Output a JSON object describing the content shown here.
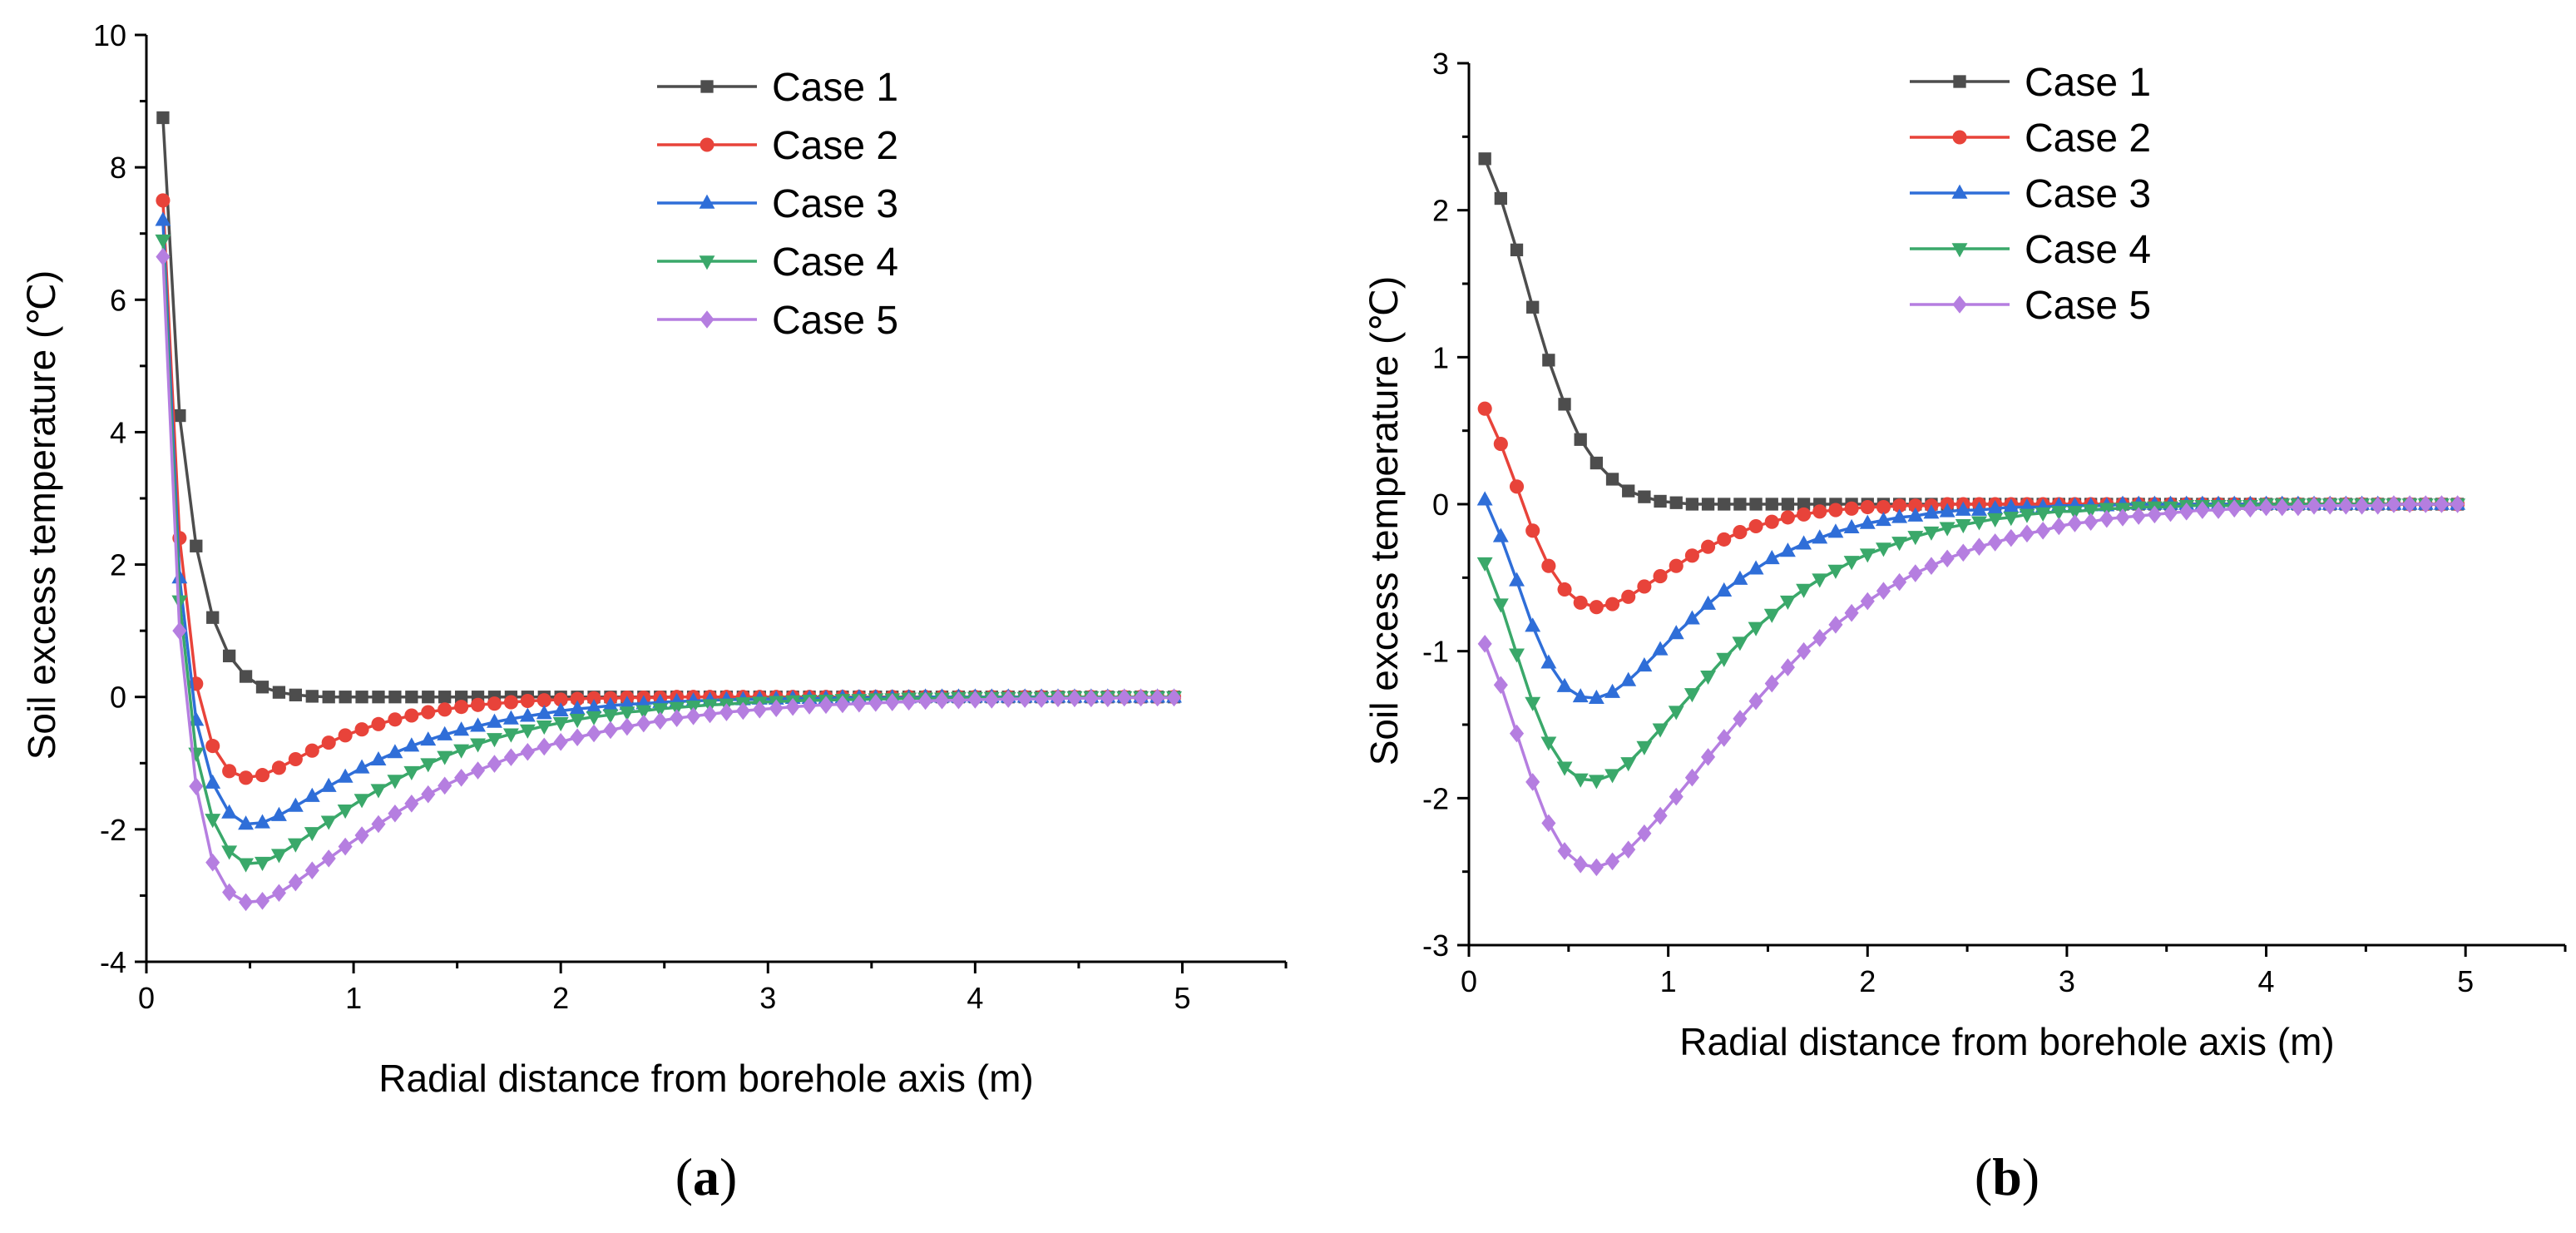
{
  "chart_data": [
    {
      "type": "line",
      "panel_label": "(a)",
      "panel_letter": "a",
      "xlabel": "Radial distance from borehole axis (m)",
      "ylabel": "Soil excess temperature (℃)",
      "xlim": [
        0,
        5.5
      ],
      "ylim": [
        -4,
        10
      ],
      "xticks": [
        0,
        1,
        2,
        3,
        4,
        5
      ],
      "yticks": [
        -4,
        -2,
        0,
        2,
        4,
        6,
        8,
        10
      ],
      "x": [
        0.08,
        0.16,
        0.24,
        0.32,
        0.4,
        0.48,
        0.56,
        0.64,
        0.72,
        0.8,
        0.88,
        0.96,
        1.04,
        1.12,
        1.2,
        1.28,
        1.36,
        1.44,
        1.52,
        1.6,
        1.68,
        1.76,
        1.84,
        1.92,
        2.0,
        2.08,
        2.16,
        2.24,
        2.32,
        2.4,
        2.48,
        2.56,
        2.64,
        2.72,
        2.8,
        2.88,
        2.96,
        3.04,
        3.12,
        3.2,
        3.28,
        3.36,
        3.44,
        3.52,
        3.6,
        3.68,
        3.76,
        3.84,
        3.92,
        4.0,
        4.08,
        4.16,
        4.24,
        4.32,
        4.4,
        4.48,
        4.56,
        4.64,
        4.72,
        4.8,
        4.88,
        4.96
      ],
      "series": [
        {
          "name": "Case 1",
          "color": "#4d4d4d",
          "marker": "square",
          "values": [
            8.75,
            4.25,
            2.28,
            1.2,
            0.62,
            0.31,
            0.15,
            0.07,
            0.03,
            0.01,
            0,
            0,
            0,
            0,
            0,
            0,
            0,
            0,
            0,
            0,
            0,
            0,
            0,
            0,
            0,
            0,
            0,
            0,
            0,
            0,
            0,
            0,
            0,
            0,
            0,
            0,
            0,
            0,
            0,
            0,
            0,
            0,
            0,
            0,
            0,
            0,
            0,
            0,
            0,
            0,
            0,
            0,
            0,
            0,
            0,
            0,
            0,
            0,
            0,
            0,
            0,
            0
          ]
        },
        {
          "name": "Case 2",
          "color": "#e8433a",
          "marker": "circle",
          "values": [
            7.5,
            2.4,
            0.2,
            -0.74,
            -1.12,
            -1.22,
            -1.18,
            -1.07,
            -0.94,
            -0.81,
            -0.69,
            -0.58,
            -0.49,
            -0.41,
            -0.34,
            -0.28,
            -0.23,
            -0.19,
            -0.15,
            -0.12,
            -0.1,
            -0.08,
            -0.06,
            -0.05,
            -0.04,
            -0.03,
            -0.02,
            -0.02,
            -0.01,
            -0.01,
            -0.01,
            0,
            0,
            0,
            0,
            0,
            0,
            0,
            0,
            0,
            0,
            0,
            0,
            0,
            0,
            0,
            0,
            0,
            0,
            0,
            0,
            0,
            0,
            0,
            0,
            0,
            0,
            0,
            0,
            0,
            0,
            0
          ]
        },
        {
          "name": "Case 3",
          "color": "#2f6ed8",
          "marker": "triangle-up",
          "values": [
            7.2,
            1.8,
            -0.35,
            -1.3,
            -1.75,
            -1.92,
            -1.9,
            -1.79,
            -1.65,
            -1.5,
            -1.35,
            -1.21,
            -1.07,
            -0.95,
            -0.84,
            -0.74,
            -0.65,
            -0.57,
            -0.5,
            -0.44,
            -0.38,
            -0.33,
            -0.29,
            -0.25,
            -0.21,
            -0.18,
            -0.16,
            -0.13,
            -0.11,
            -0.1,
            -0.08,
            -0.07,
            -0.06,
            -0.05,
            -0.04,
            -0.04,
            -0.03,
            -0.03,
            -0.02,
            -0.02,
            -0.02,
            -0.01,
            -0.01,
            -0.01,
            -0.01,
            -0.01,
            0,
            0,
            0,
            0,
            0,
            0,
            0,
            0,
            0,
            0,
            0,
            0,
            0,
            0,
            0,
            0
          ]
        },
        {
          "name": "Case 4",
          "color": "#3aa86a",
          "marker": "triangle-down",
          "values": [
            6.9,
            1.45,
            -0.85,
            -1.85,
            -2.33,
            -2.52,
            -2.5,
            -2.38,
            -2.22,
            -2.05,
            -1.88,
            -1.71,
            -1.55,
            -1.4,
            -1.26,
            -1.13,
            -1.01,
            -0.9,
            -0.8,
            -0.71,
            -0.63,
            -0.56,
            -0.5,
            -0.44,
            -0.39,
            -0.34,
            -0.3,
            -0.27,
            -0.23,
            -0.21,
            -0.18,
            -0.16,
            -0.14,
            -0.12,
            -0.11,
            -0.09,
            -0.08,
            -0.07,
            -0.06,
            -0.05,
            -0.05,
            -0.04,
            -0.04,
            -0.03,
            -0.03,
            -0.02,
            -0.02,
            -0.02,
            -0.01,
            -0.01,
            -0.01,
            -0.01,
            -0.01,
            -0.01,
            0,
            0,
            0,
            0,
            0,
            0,
            0,
            0
          ]
        },
        {
          "name": "Case 5",
          "color": "#b57ee0",
          "marker": "diamond",
          "values": [
            6.65,
            1.0,
            -1.35,
            -2.5,
            -2.95,
            -3.1,
            -3.08,
            -2.96,
            -2.8,
            -2.62,
            -2.44,
            -2.26,
            -2.09,
            -1.92,
            -1.76,
            -1.61,
            -1.47,
            -1.34,
            -1.22,
            -1.11,
            -1.01,
            -0.91,
            -0.83,
            -0.75,
            -0.68,
            -0.61,
            -0.55,
            -0.5,
            -0.45,
            -0.4,
            -0.36,
            -0.32,
            -0.29,
            -0.26,
            -0.23,
            -0.21,
            -0.19,
            -0.17,
            -0.15,
            -0.13,
            -0.12,
            -0.11,
            -0.1,
            -0.09,
            -0.08,
            -0.07,
            -0.06,
            -0.05,
            -0.05,
            -0.04,
            -0.04,
            -0.03,
            -0.03,
            -0.03,
            -0.02,
            -0.02,
            -0.02,
            -0.02,
            -0.01,
            -0.01,
            -0.01,
            -0.01
          ]
        }
      ]
    },
    {
      "type": "line",
      "panel_label": "(b)",
      "panel_letter": "b",
      "xlabel": "Radial distance from borehole axis (m)",
      "ylabel": "Soil excess temperature (℃)",
      "xlim": [
        0,
        5.5
      ],
      "ylim": [
        -3,
        3
      ],
      "xticks": [
        0,
        1,
        2,
        3,
        4,
        5
      ],
      "yticks": [
        -3,
        -2,
        -1,
        0,
        1,
        2,
        3
      ],
      "x": [
        0.08,
        0.16,
        0.24,
        0.32,
        0.4,
        0.48,
        0.56,
        0.64,
        0.72,
        0.8,
        0.88,
        0.96,
        1.04,
        1.12,
        1.2,
        1.28,
        1.36,
        1.44,
        1.52,
        1.6,
        1.68,
        1.76,
        1.84,
        1.92,
        2.0,
        2.08,
        2.16,
        2.24,
        2.32,
        2.4,
        2.48,
        2.56,
        2.64,
        2.72,
        2.8,
        2.88,
        2.96,
        3.04,
        3.12,
        3.2,
        3.28,
        3.36,
        3.44,
        3.52,
        3.6,
        3.68,
        3.76,
        3.84,
        3.92,
        4.0,
        4.08,
        4.16,
        4.24,
        4.32,
        4.4,
        4.48,
        4.56,
        4.64,
        4.72,
        4.8,
        4.88,
        4.96
      ],
      "series": [
        {
          "name": "Case 1",
          "color": "#4d4d4d",
          "marker": "square",
          "values": [
            2.35,
            2.08,
            1.73,
            1.34,
            0.98,
            0.68,
            0.44,
            0.28,
            0.17,
            0.09,
            0.05,
            0.02,
            0.01,
            0,
            0,
            0,
            0,
            0,
            0,
            0,
            0,
            0,
            0,
            0,
            0,
            0,
            0,
            0,
            0,
            0,
            0,
            0,
            0,
            0,
            0,
            0,
            0,
            0,
            0,
            0,
            0,
            0,
            0,
            0,
            0,
            0,
            0,
            0,
            0,
            0,
            0,
            0,
            0,
            0,
            0,
            0,
            0,
            0,
            0,
            0,
            0,
            0
          ]
        },
        {
          "name": "Case 2",
          "color": "#e8433a",
          "marker": "circle",
          "values": [
            0.65,
            0.41,
            0.12,
            -0.18,
            -0.42,
            -0.58,
            -0.67,
            -0.7,
            -0.68,
            -0.63,
            -0.56,
            -0.49,
            -0.42,
            -0.35,
            -0.29,
            -0.24,
            -0.19,
            -0.15,
            -0.12,
            -0.09,
            -0.07,
            -0.05,
            -0.04,
            -0.03,
            -0.02,
            -0.02,
            -0.01,
            -0.01,
            -0.01,
            0,
            0,
            0,
            0,
            0,
            0,
            0,
            0,
            0,
            0,
            0,
            0,
            0,
            0,
            0,
            0,
            0,
            0,
            0,
            0,
            0,
            0,
            0,
            0,
            0,
            0,
            0,
            0,
            0,
            0,
            0,
            0,
            0
          ]
        },
        {
          "name": "Case 3",
          "color": "#2f6ed8",
          "marker": "triangle-up",
          "values": [
            0.03,
            -0.22,
            -0.52,
            -0.83,
            -1.08,
            -1.24,
            -1.31,
            -1.32,
            -1.28,
            -1.2,
            -1.1,
            -0.99,
            -0.88,
            -0.78,
            -0.68,
            -0.59,
            -0.51,
            -0.44,
            -0.37,
            -0.32,
            -0.27,
            -0.23,
            -0.19,
            -0.16,
            -0.13,
            -0.11,
            -0.09,
            -0.08,
            -0.06,
            -0.05,
            -0.04,
            -0.04,
            -0.03,
            -0.02,
            -0.02,
            -0.02,
            -0.01,
            -0.01,
            -0.01,
            -0.01,
            0,
            0,
            0,
            0,
            0,
            0,
            0,
            0,
            0,
            0,
            0,
            0,
            0,
            0,
            0,
            0,
            0,
            0,
            0,
            0,
            0,
            0
          ]
        },
        {
          "name": "Case 4",
          "color": "#3aa86a",
          "marker": "triangle-down",
          "values": [
            -0.4,
            -0.68,
            -1.02,
            -1.35,
            -1.62,
            -1.79,
            -1.87,
            -1.88,
            -1.84,
            -1.76,
            -1.65,
            -1.53,
            -1.41,
            -1.29,
            -1.17,
            -1.05,
            -0.94,
            -0.84,
            -0.75,
            -0.66,
            -0.58,
            -0.51,
            -0.45,
            -0.39,
            -0.34,
            -0.3,
            -0.26,
            -0.22,
            -0.19,
            -0.16,
            -0.14,
            -0.12,
            -0.1,
            -0.09,
            -0.07,
            -0.06,
            -0.05,
            -0.05,
            -0.04,
            -0.03,
            -0.03,
            -0.02,
            -0.02,
            -0.02,
            -0.01,
            -0.01,
            -0.01,
            -0.01,
            -0.01,
            0,
            0,
            0,
            0,
            0,
            0,
            0,
            0,
            0,
            0,
            0,
            0,
            0
          ]
        },
        {
          "name": "Case 5",
          "color": "#b57ee0",
          "marker": "diamond",
          "values": [
            -0.95,
            -1.23,
            -1.56,
            -1.89,
            -2.17,
            -2.36,
            -2.45,
            -2.47,
            -2.43,
            -2.35,
            -2.24,
            -2.12,
            -1.99,
            -1.86,
            -1.72,
            -1.59,
            -1.46,
            -1.34,
            -1.22,
            -1.11,
            -1.0,
            -0.91,
            -0.82,
            -0.74,
            -0.66,
            -0.59,
            -0.53,
            -0.47,
            -0.42,
            -0.37,
            -0.33,
            -0.29,
            -0.26,
            -0.23,
            -0.2,
            -0.18,
            -0.15,
            -0.13,
            -0.12,
            -0.1,
            -0.09,
            -0.08,
            -0.07,
            -0.06,
            -0.05,
            -0.04,
            -0.04,
            -0.03,
            -0.03,
            -0.02,
            -0.02,
            -0.02,
            -0.01,
            -0.01,
            -0.01,
            -0.01,
            -0.01,
            0,
            0,
            0,
            0,
            0
          ]
        }
      ]
    }
  ]
}
